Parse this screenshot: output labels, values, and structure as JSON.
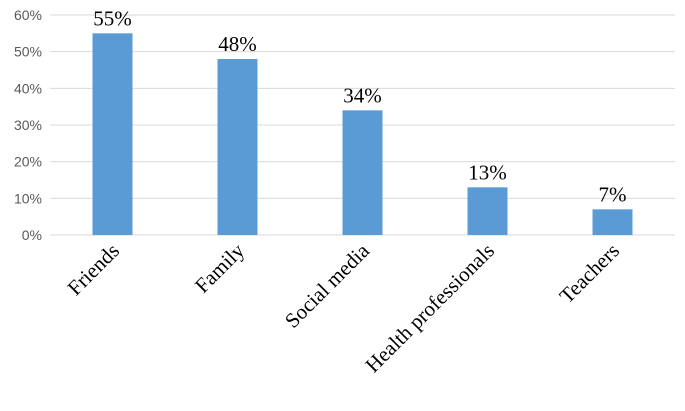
{
  "chart_data": {
    "type": "bar",
    "categories": [
      "Friends",
      "Family",
      "Social media",
      "Health professionals",
      "Teachers"
    ],
    "values": [
      55,
      48,
      34,
      13,
      7
    ],
    "data_labels": [
      "55%",
      "48%",
      "34%",
      "13%",
      "7%"
    ],
    "ylim": [
      0,
      60
    ],
    "yticks": [
      0,
      10,
      20,
      30,
      40,
      50,
      60
    ],
    "ytick_labels": [
      "0%",
      "10%",
      "20%",
      "30%",
      "40%",
      "50%",
      "60%"
    ],
    "grid": true,
    "legend": "none",
    "title": "",
    "xlabel": "",
    "ylabel": "",
    "colors": {
      "bar": "#5B9BD5",
      "grid": "#D9D9D9",
      "axis": "#D9D9D9"
    }
  }
}
